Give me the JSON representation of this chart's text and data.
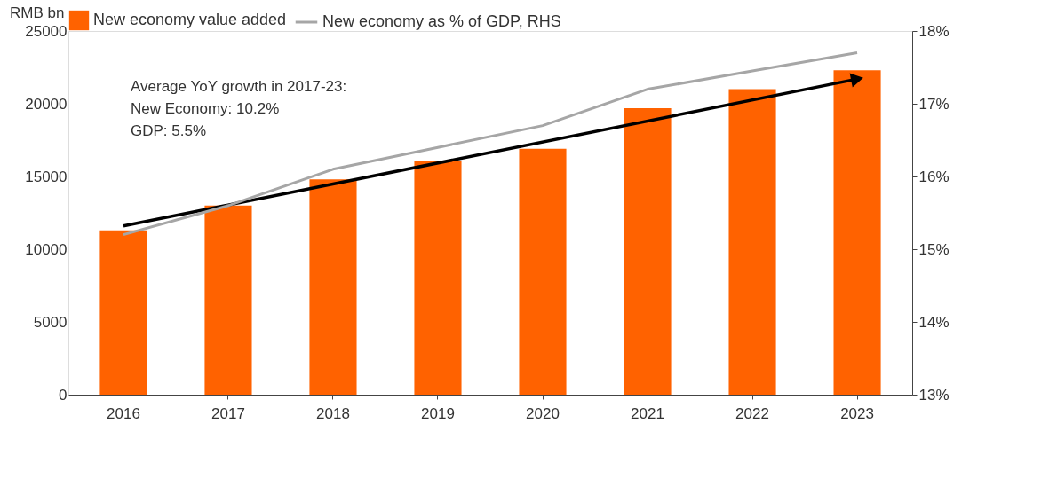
{
  "chart_data": {
    "type": "bar",
    "categories": [
      "2016",
      "2017",
      "2018",
      "2019",
      "2020",
      "2021",
      "2022",
      "2023"
    ],
    "ylabel": "RMB bn",
    "series": [
      {
        "name": "New economy value added",
        "color": "#ff6200",
        "values": [
          11300,
          13000,
          14800,
          16100,
          16900,
          19700,
          21000,
          22300
        ]
      },
      {
        "name": "New economy as % of GDP, RHS",
        "color": "#a6a6a6",
        "type": "line",
        "axis": "y2",
        "values": [
          15.2,
          15.6,
          16.1,
          16.4,
          16.7,
          17.2,
          17.45,
          17.7
        ]
      },
      {
        "color": "#000000",
        "type": "line",
        "values": [
          11600,
          null,
          null,
          null,
          null,
          null,
          null,
          21700
        ]
      }
    ],
    "ylim": [
      0,
      25000
    ],
    "yticks": [
      0,
      5000,
      10000,
      15000,
      20000,
      25000
    ],
    "y2lim": [
      13,
      18
    ],
    "y2ticks": [
      {
        "value": 13,
        "label": "13%"
      },
      {
        "value": 14,
        "label": "14%"
      },
      {
        "value": 15,
        "label": "15%"
      },
      {
        "value": 16,
        "label": "16%"
      },
      {
        "value": 17,
        "label": "17%"
      },
      {
        "value": 18,
        "label": "18%"
      }
    ],
    "annotations": [
      "Average YoY growth in 2017-23:",
      "New Economy: 10.2%",
      "GDP: 5.5%"
    ],
    "legend": "top",
    "grid": false
  }
}
